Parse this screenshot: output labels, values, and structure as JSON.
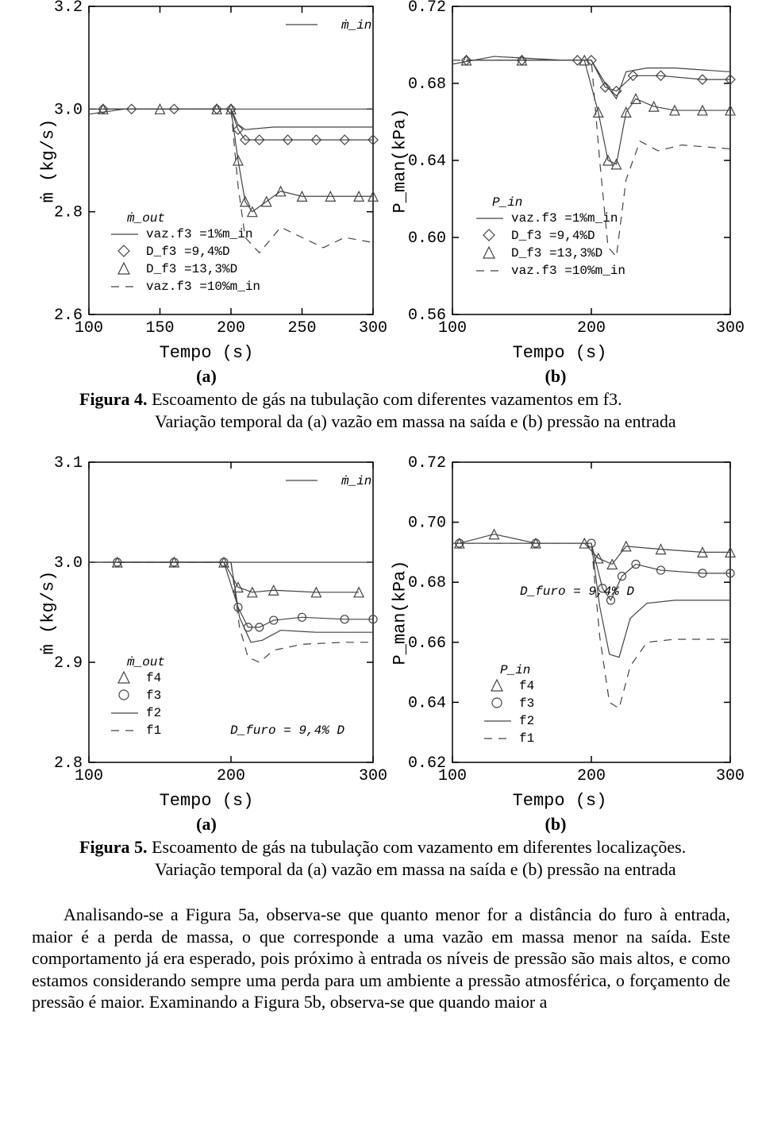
{
  "figure4": {
    "caption_bold": "Figura 4.",
    "caption_line1": " Escoamento de gás na tubulação com diferentes vazamentos em f3.",
    "caption_line2": "Variação temporal da (a) vazão em massa na saída e (b) pressão na entrada",
    "sub_a": "(a)",
    "sub_b": "(b)",
    "chart_a": {
      "type": "line",
      "xlabel": "Tempo (s)",
      "ylabel": "ṁ (kg/s)",
      "xlim": [
        100,
        300
      ],
      "ylim": [
        2.6,
        3.2
      ],
      "xticks": [
        100,
        150,
        200,
        250,
        300
      ],
      "yticks": [
        2.6,
        2.8,
        3.0,
        3.2
      ],
      "colors": {
        "line": "#444444",
        "axis": "#000000",
        "bg": "#ffffff"
      },
      "inline_label": "ṁ_in",
      "legend_title": "ṁ_out",
      "legend": [
        {
          "marker": "line",
          "label": "vaz.f3 =1%m_in"
        },
        {
          "marker": "diamond",
          "label": "D_f3 =9,4%D"
        },
        {
          "marker": "triangle",
          "label": "D_f3 =13,3%D"
        },
        {
          "marker": "dash",
          "label": "vaz.f3 =10%m_in"
        }
      ],
      "series": {
        "m_in_const": 3.0,
        "solid": [
          [
            100,
            2.99
          ],
          [
            125,
            3.0
          ],
          [
            200,
            3.0
          ],
          [
            205,
            2.97
          ],
          [
            210,
            2.96
          ],
          [
            230,
            2.965
          ],
          [
            260,
            2.965
          ],
          [
            300,
            2.965
          ]
        ],
        "diamond": [
          [
            110,
            3.0
          ],
          [
            130,
            3.0
          ],
          [
            160,
            3.0
          ],
          [
            190,
            3.0
          ],
          [
            200,
            3.0
          ],
          [
            205,
            2.96
          ],
          [
            210,
            2.94
          ],
          [
            220,
            2.94
          ],
          [
            240,
            2.94
          ],
          [
            260,
            2.94
          ],
          [
            280,
            2.94
          ],
          [
            300,
            2.94
          ]
        ],
        "triangle": [
          [
            110,
            3.0
          ],
          [
            150,
            3.0
          ],
          [
            190,
            3.0
          ],
          [
            200,
            3.0
          ],
          [
            205,
            2.9
          ],
          [
            210,
            2.82
          ],
          [
            215,
            2.8
          ],
          [
            225,
            2.82
          ],
          [
            235,
            2.84
          ],
          [
            250,
            2.83
          ],
          [
            270,
            2.83
          ],
          [
            290,
            2.83
          ],
          [
            300,
            2.83
          ]
        ],
        "dash": [
          [
            100,
            3.0
          ],
          [
            200,
            3.0
          ],
          [
            205,
            2.85
          ],
          [
            210,
            2.75
          ],
          [
            220,
            2.72
          ],
          [
            235,
            2.77
          ],
          [
            250,
            2.75
          ],
          [
            265,
            2.73
          ],
          [
            280,
            2.75
          ],
          [
            300,
            2.74
          ]
        ]
      }
    },
    "chart_b": {
      "type": "line",
      "xlabel": "Tempo (s)",
      "ylabel": "P_man(kPa)",
      "xlim": [
        100,
        300
      ],
      "ylim": [
        0.56,
        0.72
      ],
      "xticks": [
        100,
        200,
        300
      ],
      "yticks": [
        0.56,
        0.6,
        0.64,
        0.68,
        0.72
      ],
      "colors": {
        "line": "#444444",
        "axis": "#000000",
        "bg": "#ffffff"
      },
      "legend_title": "P_in",
      "legend": [
        {
          "marker": "line",
          "label": "vaz.f3 =1%m_in"
        },
        {
          "marker": "diamond",
          "label": "D_f3 =9,4%D"
        },
        {
          "marker": "triangle",
          "label": "D_f3 =13,3%D"
        },
        {
          "marker": "dash",
          "label": "vaz.f3 =10%m_in"
        }
      ],
      "series": {
        "solid": [
          [
            100,
            0.69
          ],
          [
            130,
            0.694
          ],
          [
            180,
            0.692
          ],
          [
            200,
            0.692
          ],
          [
            210,
            0.68
          ],
          [
            218,
            0.672
          ],
          [
            225,
            0.686
          ],
          [
            240,
            0.688
          ],
          [
            260,
            0.688
          ],
          [
            300,
            0.686
          ]
        ],
        "diamond": [
          [
            110,
            0.692
          ],
          [
            150,
            0.692
          ],
          [
            190,
            0.692
          ],
          [
            200,
            0.692
          ],
          [
            210,
            0.678
          ],
          [
            218,
            0.676
          ],
          [
            230,
            0.684
          ],
          [
            250,
            0.684
          ],
          [
            280,
            0.682
          ],
          [
            300,
            0.682
          ]
        ],
        "triangle": [
          [
            110,
            0.692
          ],
          [
            150,
            0.692
          ],
          [
            195,
            0.692
          ],
          [
            205,
            0.665
          ],
          [
            212,
            0.64
          ],
          [
            218,
            0.638
          ],
          [
            225,
            0.665
          ],
          [
            232,
            0.672
          ],
          [
            245,
            0.668
          ],
          [
            260,
            0.666
          ],
          [
            280,
            0.666
          ],
          [
            300,
            0.666
          ]
        ],
        "dash": [
          [
            100,
            0.692
          ],
          [
            200,
            0.692
          ],
          [
            206,
            0.64
          ],
          [
            212,
            0.595
          ],
          [
            218,
            0.59
          ],
          [
            225,
            0.63
          ],
          [
            235,
            0.65
          ],
          [
            248,
            0.645
          ],
          [
            265,
            0.648
          ],
          [
            300,
            0.646
          ]
        ]
      }
    }
  },
  "figure5": {
    "caption_bold": "Figura 5.",
    "caption_line1": " Escoamento de gás na tubulação com vazamento em diferentes localizações.",
    "caption_line2": "Variação temporal da (a) vazão em massa na saída e (b) pressão na entrada",
    "sub_a": "(a)",
    "sub_b": "(b)",
    "chart_a": {
      "type": "line",
      "xlabel": "Tempo (s)",
      "ylabel": "ṁ (kg/s)",
      "xlim": [
        100,
        300
      ],
      "ylim": [
        2.8,
        3.1
      ],
      "xticks": [
        100,
        200,
        300
      ],
      "yticks": [
        2.8,
        2.9,
        3.0,
        3.1
      ],
      "colors": {
        "line": "#444444",
        "axis": "#000000",
        "bg": "#ffffff"
      },
      "inline_label": "ṁ_in",
      "annotation": "D_furo = 9,4% D",
      "legend_title": "ṁ_out",
      "legend": [
        {
          "marker": "triangle",
          "label": "f4"
        },
        {
          "marker": "circle",
          "label": "f3"
        },
        {
          "marker": "line",
          "label": "f2"
        },
        {
          "marker": "dash",
          "label": "f1"
        }
      ],
      "series": {
        "m_in_const": 3.0,
        "triangle": [
          [
            120,
            3.0
          ],
          [
            160,
            3.0
          ],
          [
            195,
            3.0
          ],
          [
            205,
            2.975
          ],
          [
            215,
            2.97
          ],
          [
            230,
            2.972
          ],
          [
            260,
            2.97
          ],
          [
            290,
            2.97
          ]
        ],
        "circle": [
          [
            120,
            3.0
          ],
          [
            160,
            3.0
          ],
          [
            195,
            3.0
          ],
          [
            205,
            2.955
          ],
          [
            212,
            2.935
          ],
          [
            220,
            2.935
          ],
          [
            230,
            2.942
          ],
          [
            250,
            2.945
          ],
          [
            280,
            2.943
          ],
          [
            300,
            2.943
          ]
        ],
        "solid": [
          [
            100,
            3.0
          ],
          [
            200,
            3.0
          ],
          [
            206,
            2.945
          ],
          [
            214,
            2.92
          ],
          [
            222,
            2.922
          ],
          [
            235,
            2.932
          ],
          [
            260,
            2.93
          ],
          [
            300,
            2.93
          ]
        ],
        "dash": [
          [
            100,
            3.0
          ],
          [
            200,
            3.0
          ],
          [
            206,
            2.935
          ],
          [
            212,
            2.905
          ],
          [
            220,
            2.9
          ],
          [
            230,
            2.912
          ],
          [
            250,
            2.918
          ],
          [
            280,
            2.92
          ],
          [
            300,
            2.92
          ]
        ]
      }
    },
    "chart_b": {
      "type": "line",
      "xlabel": "Tempo (s)",
      "ylabel": "P_man(kPa)",
      "xlim": [
        100,
        300
      ],
      "ylim": [
        0.62,
        0.72
      ],
      "xticks": [
        100,
        200,
        300
      ],
      "yticks": [
        0.62,
        0.64,
        0.66,
        0.68,
        0.7,
        0.72
      ],
      "colors": {
        "line": "#444444",
        "axis": "#000000",
        "bg": "#ffffff"
      },
      "legend_title": "P_in",
      "annotation": "D_furo = 9,4% D",
      "legend": [
        {
          "marker": "triangle",
          "label": "f4"
        },
        {
          "marker": "circle",
          "label": "f3"
        },
        {
          "marker": "line",
          "label": "f2"
        },
        {
          "marker": "dash",
          "label": "f1"
        }
      ],
      "series": {
        "triangle": [
          [
            105,
            0.693
          ],
          [
            130,
            0.696
          ],
          [
            160,
            0.693
          ],
          [
            195,
            0.693
          ],
          [
            205,
            0.688
          ],
          [
            215,
            0.686
          ],
          [
            225,
            0.692
          ],
          [
            250,
            0.691
          ],
          [
            280,
            0.69
          ],
          [
            300,
            0.69
          ]
        ],
        "circle": [
          [
            105,
            0.693
          ],
          [
            160,
            0.693
          ],
          [
            200,
            0.693
          ],
          [
            208,
            0.678
          ],
          [
            214,
            0.674
          ],
          [
            222,
            0.682
          ],
          [
            232,
            0.686
          ],
          [
            250,
            0.684
          ],
          [
            280,
            0.683
          ],
          [
            300,
            0.683
          ]
        ],
        "solid": [
          [
            100,
            0.693
          ],
          [
            200,
            0.693
          ],
          [
            206,
            0.672
          ],
          [
            213,
            0.656
          ],
          [
            220,
            0.655
          ],
          [
            228,
            0.668
          ],
          [
            240,
            0.673
          ],
          [
            260,
            0.674
          ],
          [
            300,
            0.674
          ]
        ],
        "dash": [
          [
            100,
            0.693
          ],
          [
            200,
            0.693
          ],
          [
            206,
            0.662
          ],
          [
            213,
            0.64
          ],
          [
            220,
            0.638
          ],
          [
            228,
            0.652
          ],
          [
            240,
            0.66
          ],
          [
            260,
            0.661
          ],
          [
            300,
            0.661
          ]
        ]
      }
    }
  },
  "body_paragraph": "Analisando-se a Figura 5a, observa-se que quanto menor for a distância do furo à entrada, maior é a perda de massa, o que corresponde a uma vazão em massa menor na saída. Este comportamento já era esperado, pois próximo à entrada os níveis de pressão são mais altos, e como estamos considerando sempre uma perda para um ambiente a pressão atmosférica, o forçamento de pressão é maior. Examinando a Figura 5b, observa-se que quando maior a"
}
